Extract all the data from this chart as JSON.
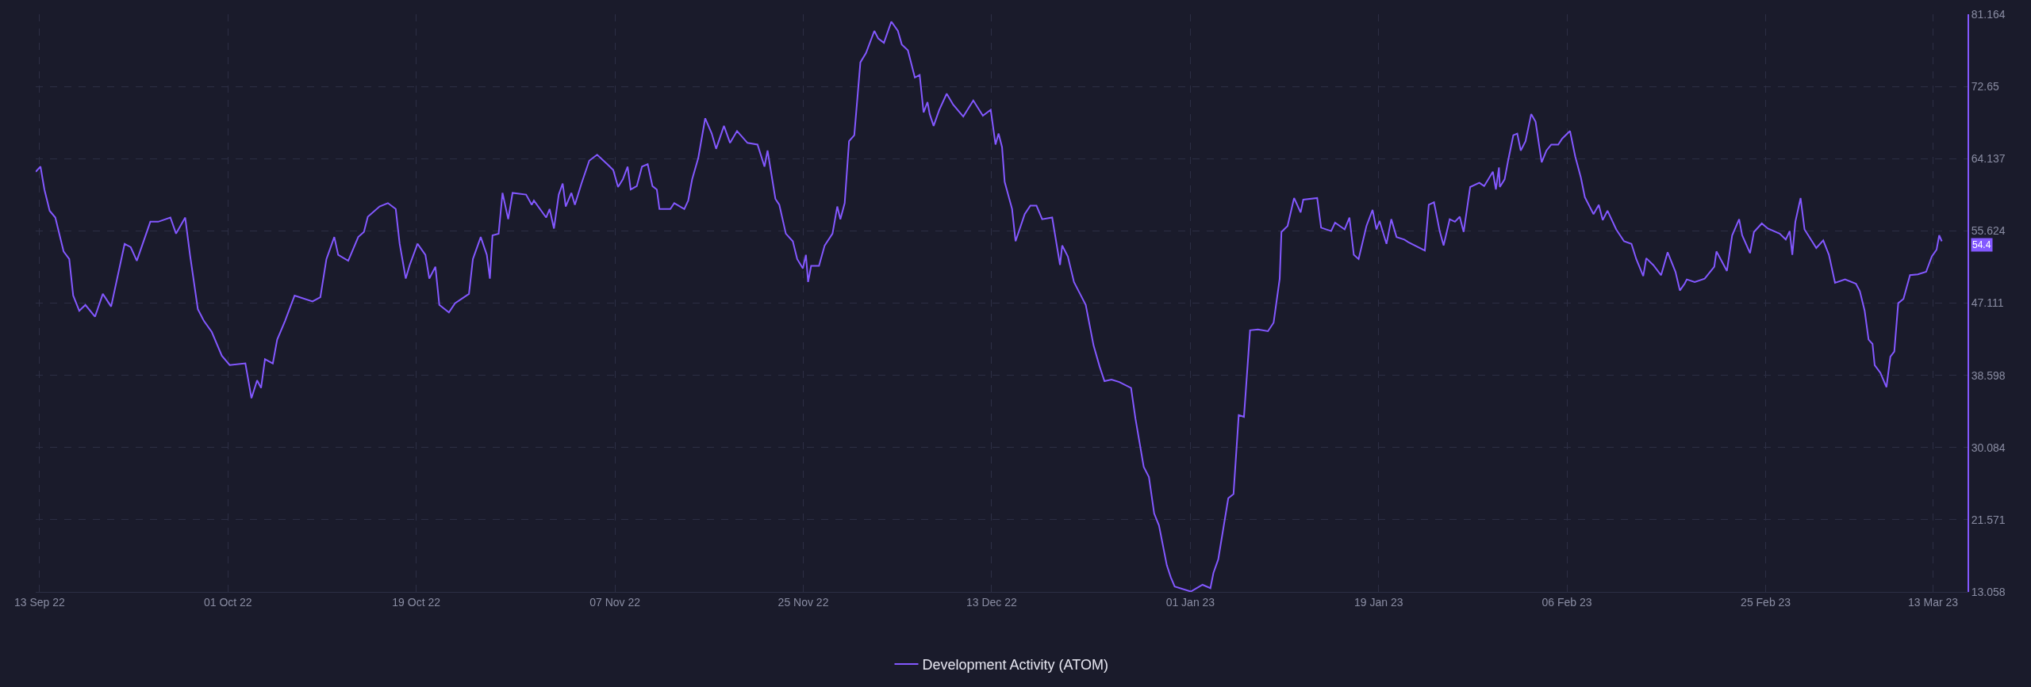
{
  "chart_data": {
    "type": "line",
    "x": [
      "2022-09-12T15:00",
      "2022-09-13T02:00",
      "2022-09-13T11:00",
      "2022-09-13T23:00",
      "2022-09-14T12:00",
      "2022-09-15T07:00",
      "2022-09-15T20:00",
      "2022-09-16T05:00",
      "2022-09-16T19:00",
      "2022-09-17T09:00",
      "2022-09-18T07:00",
      "2022-09-19T01:00",
      "2022-09-19T20:00",
      "2022-09-21T03:00",
      "2022-09-21T17:00",
      "2022-09-22T07:00",
      "2022-09-23T14:00",
      "2022-09-24T08:00",
      "2022-09-25T12:00",
      "2022-09-26T01:00",
      "2022-09-26T22:00",
      "2022-09-27T09:00",
      "2022-09-28T03:00",
      "2022-09-28T17:00",
      "2022-09-29T11:00",
      "2022-09-30T10:00",
      "2022-10-01T04:00",
      "2022-10-02T16:00",
      "2022-10-03T06:00",
      "2022-10-03T19:00",
      "2022-10-04T04:00",
      "2022-10-04T13:00",
      "2022-10-05T07:00",
      "2022-10-05T17:00",
      "2022-10-06T11:00",
      "2022-10-07T09:00",
      "2022-10-09T02:00",
      "2022-10-09T20:00",
      "2022-10-10T10:00",
      "2022-10-11T04:00",
      "2022-10-11T13:00",
      "2022-10-12T12:00",
      "2022-10-13T11:00",
      "2022-10-14T00:00",
      "2022-10-14T09:00",
      "2022-10-15T12:00",
      "2022-10-16T07:00",
      "2022-10-17T01:00",
      "2022-10-17T10:00",
      "2022-10-18T00:00",
      "2022-10-18T09:00",
      "2022-10-19T03:00",
      "2022-10-19T21:00",
      "2022-10-20T06:00",
      "2022-10-20T20:00",
      "2022-10-21T05:00",
      "2022-10-22T03:00",
      "2022-10-22T17:00",
      "2022-10-24T01:00",
      "2022-10-24T10:00",
      "2022-10-25T04:00",
      "2022-10-25T18:00",
      "2022-10-26T01:00",
      "2022-10-26T07:00",
      "2022-10-26T21:00",
      "2022-10-27T06:00",
      "2022-10-27T19:00",
      "2022-10-28T05:00",
      "2022-10-29T12:00",
      "2022-10-30T01:00",
      "2022-10-30T06:00",
      "2022-10-31T10:00",
      "2022-10-31T18:00",
      "2022-11-01T04:00",
      "2022-11-01T15:00",
      "2022-11-02T00:00",
      "2022-11-02T07:00",
      "2022-11-02T20:00",
      "2022-11-03T04:00",
      "2022-11-03T19:00",
      "2022-11-04T13:00",
      "2022-11-05T07:00",
      "2022-11-06T06:00",
      "2022-11-06T20:00",
      "2022-11-07T07:00",
      "2022-11-07T18:00",
      "2022-11-08T05:00",
      "2022-11-08T12:00",
      "2022-11-09T02:00",
      "2022-11-09T14:00",
      "2022-11-10T03:00",
      "2022-11-10T14:00",
      "2022-11-11T00:00",
      "2022-11-11T06:00",
      "2022-11-12T07:00",
      "2022-11-12T16:00",
      "2022-11-13T15:00",
      "2022-11-14T00:00",
      "2022-11-14T09:00",
      "2022-11-14T23:00",
      "2022-11-15T15:00",
      "2022-11-16T06:00",
      "2022-11-16T16:00",
      "2022-11-17T10:00",
      "2022-11-18T00:00",
      "2022-11-18T16:00",
      "2022-11-19T16:00",
      "2022-11-20T15:00",
      "2022-11-21T07:00",
      "2022-11-21T14:00",
      "2022-11-22T08:00",
      "2022-11-22T17:00",
      "2022-11-23T08:00",
      "2022-11-24T00:00",
      "2022-11-24T10:00",
      "2022-11-24T23:00",
      "2022-11-25T06:00",
      "2022-11-25T11:00",
      "2022-11-25T18:00",
      "2022-11-26T12:00",
      "2022-11-27T01:00",
      "2022-11-27T19:00",
      "2022-11-28T06:00",
      "2022-11-28T13:00",
      "2022-11-28T23:00",
      "2022-11-29T09:00",
      "2022-11-29T21:00",
      "2022-11-30T11:00",
      "2022-12-01T00:00",
      "2022-12-01T19:00",
      "2022-12-02T04:00",
      "2022-12-02T17:00",
      "2022-12-03T10:00",
      "2022-12-04T01:00",
      "2022-12-04T10:00",
      "2022-12-05T00:00",
      "2022-12-05T16:00",
      "2022-12-06T03:00",
      "2022-12-06T12:00",
      "2022-12-06T21:00",
      "2022-12-07T02:00",
      "2022-12-07T11:00",
      "2022-12-08T00:00",
      "2022-12-08T17:00",
      "2022-12-09T08:00",
      "2022-12-10T07:00",
      "2022-12-11T06:00",
      "2022-12-12T04:00",
      "2022-12-12T22:00",
      "2022-12-13T09:00",
      "2022-12-13T16:00",
      "2022-12-14T00:00",
      "2022-12-14T06:00",
      "2022-12-14T23:00",
      "2022-12-15T07:00",
      "2022-12-16T04:00",
      "2022-12-16T17:00",
      "2022-12-17T07:00",
      "2022-12-17T20:00",
      "2022-12-18T19:00",
      "2022-12-19T13:00",
      "2022-12-19T18:00",
      "2022-12-20T07:00",
      "2022-12-20T21:00",
      "2022-12-21T11:00",
      "2022-12-22T00:00",
      "2022-12-22T18:00",
      "2022-12-23T08:00",
      "2022-12-23T19:00",
      "2022-12-24T11:00",
      "2022-12-25T05:00",
      "2022-12-26T08:00",
      "2022-12-26T18:00",
      "2022-12-27T13:00",
      "2022-12-28T01:00",
      "2022-12-28T13:00",
      "2022-12-29T00:00",
      "2022-12-29T18:00",
      "2022-12-30T03:00",
      "2022-12-30T12:00",
      "2023-01-01T01:00",
      "2023-01-02T04:00",
      "2023-01-02T22:00",
      "2023-01-03T05:00",
      "2023-01-03T16:00",
      "2023-01-04T15:00",
      "2023-01-05T03:00",
      "2023-01-05T15:00",
      "2023-01-06T03:00",
      "2023-01-06T17:00",
      "2023-01-07T11:00",
      "2023-01-08T10:00",
      "2023-01-08T23:00",
      "2023-01-09T13:00",
      "2023-01-09T17:00",
      "2023-01-10T07:00",
      "2023-01-10T22:00",
      "2023-01-11T13:00",
      "2023-01-11T19:00",
      "2023-01-13T03:00",
      "2023-01-13T12:00",
      "2023-01-14T11:00",
      "2023-01-14T20:00",
      "2023-01-15T18:00",
      "2023-01-16T05:00",
      "2023-01-16T15:00",
      "2023-01-17T02:00",
      "2023-01-17T20:00",
      "2023-01-18T10:00",
      "2023-01-18T19:00",
      "2023-01-19T02:00",
      "2023-01-19T18:00",
      "2023-01-20T05:00",
      "2023-01-20T17:00",
      "2023-01-21T11:00",
      "2023-01-21T20:00",
      "2023-01-23T10:00",
      "2023-01-23T19:00",
      "2023-01-24T07:00",
      "2023-01-24T20:00",
      "2023-01-25T05:00",
      "2023-01-25T19:00",
      "2023-01-26T07:00",
      "2023-01-26T18:00",
      "2023-01-27T03:00",
      "2023-01-27T18:00",
      "2023-01-28T15:00",
      "2023-01-29T02:00",
      "2023-01-29T22:00",
      "2023-01-30T05:00",
      "2023-01-30T12:00",
      "2023-01-30T14:00",
      "2023-01-31T01:00",
      "2023-01-31T09:00",
      "2023-01-31T21:00",
      "2023-02-01T06:00",
      "2023-02-01T14:00",
      "2023-02-02T01:00",
      "2023-02-02T14:00",
      "2023-02-03T00:00",
      "2023-02-03T14:00",
      "2023-02-04T01:00",
      "2023-02-04T12:00",
      "2023-02-05T04:00",
      "2023-02-05T13:00",
      "2023-02-06T07:00",
      "2023-02-06T19:00",
      "2023-02-07T08:00",
      "2023-02-07T17:00",
      "2023-02-08T13:00",
      "2023-02-09T01:00",
      "2023-02-09T10:00",
      "2023-02-09T21:00",
      "2023-02-10T17:00",
      "2023-02-11T11:00",
      "2023-02-12T04:00",
      "2023-02-12T15:00",
      "2023-02-13T07:00",
      "2023-02-13T14:00",
      "2023-02-14T06:00",
      "2023-02-15T00:00",
      "2023-02-15T15:00",
      "2023-02-16T09:00",
      "2023-02-16T19:00",
      "2023-02-17T06:00",
      "2023-02-17T11:00",
      "2023-02-18T05:00",
      "2023-02-19T04:00",
      "2023-02-20T02:00",
      "2023-02-20T07:00",
      "2023-02-21T07:00",
      "2023-02-21T19:00",
      "2023-02-22T11:00",
      "2023-02-22T18:00",
      "2023-02-23T12:00",
      "2023-02-23T21:00",
      "2023-02-24T15:00",
      "2023-02-25T05:00",
      "2023-02-26T08:00",
      "2023-02-26T22:00",
      "2023-02-27T07:00",
      "2023-02-27T13:00",
      "2023-02-27T20:00",
      "2023-02-28T08:00",
      "2023-02-28T17:00",
      "2023-03-01T20:00",
      "2023-03-02T12:00",
      "2023-03-03T01:00",
      "2023-03-03T15:00",
      "2023-03-04T14:00",
      "2023-03-05T15:00",
      "2023-03-06T00:00",
      "2023-03-06T11:00",
      "2023-03-06T20:00",
      "2023-03-07T05:00",
      "2023-03-07T10:00",
      "2023-03-07T23:00",
      "2023-03-08T13:00",
      "2023-03-08T22:00",
      "2023-03-09T07:00",
      "2023-03-09T16:00",
      "2023-03-10T04:00",
      "2023-03-10T19:00",
      "2023-03-11T13:00",
      "2023-03-12T08:00",
      "2023-03-12T21:00",
      "2023-03-13T08:00",
      "2023-03-13T14:00",
      "2023-03-13T20:00"
    ],
    "series": [
      {
        "name": "Development Activity (ATOM)",
        "color": "#8358ff",
        "values": [
          62.6,
          63.2,
          60.5,
          58.0,
          57.2,
          53.2,
          52.3,
          48.0,
          46.2,
          46.9,
          45.5,
          48.2,
          46.7,
          54.1,
          53.7,
          52.1,
          56.7,
          56.7,
          57.2,
          55.3,
          57.2,
          52.8,
          46.4,
          45.0,
          43.7,
          40.9,
          39.8,
          40.0,
          35.9,
          38.0,
          37.1,
          40.5,
          40.0,
          42.8,
          45.0,
          48.0,
          47.3,
          47.8,
          52.3,
          54.9,
          52.8,
          52.1,
          54.9,
          55.5,
          57.3,
          58.5,
          58.9,
          58.2,
          54.1,
          50.0,
          51.6,
          54.1,
          52.8,
          50.0,
          51.4,
          46.9,
          46.0,
          47.1,
          48.2,
          52.3,
          54.9,
          52.8,
          50.0,
          55.1,
          55.3,
          60.1,
          57.0,
          60.1,
          59.9,
          58.7,
          59.2,
          57.2,
          58.2,
          55.9,
          59.9,
          61.2,
          58.5,
          60.1,
          58.7,
          61.2,
          63.9,
          64.6,
          63.5,
          62.8,
          60.8,
          61.7,
          63.2,
          60.5,
          60.9,
          63.2,
          63.5,
          60.9,
          60.5,
          58.2,
          58.2,
          58.9,
          58.2,
          59.2,
          61.7,
          64.2,
          68.9,
          67.1,
          65.3,
          68.0,
          66.0,
          67.4,
          66.0,
          65.8,
          63.2,
          65.1,
          59.4,
          58.7,
          55.3,
          54.4,
          52.3,
          51.2,
          52.8,
          49.6,
          51.5,
          51.5,
          53.9,
          55.3,
          58.5,
          57.0,
          58.9,
          66.2,
          66.9,
          75.5,
          76.6,
          79.2,
          78.3,
          77.8,
          80.3,
          79.2,
          77.6,
          76.9,
          73.7,
          74.0,
          69.6,
          70.8,
          69.4,
          68.0,
          69.9,
          71.8,
          70.5,
          69.1,
          71.0,
          69.2,
          69.9,
          65.8,
          67.1,
          65.5,
          61.4,
          58.2,
          54.4,
          57.6,
          58.6,
          58.6,
          57.0,
          57.2,
          51.6,
          53.9,
          52.6,
          49.6,
          48.2,
          46.9,
          42.1,
          39.6,
          37.9,
          38.1,
          37.8,
          37.1,
          33.5,
          27.8,
          26.6,
          22.3,
          20.9,
          16.2,
          14.8,
          13.7,
          13.1,
          13.9,
          13.5,
          15.3,
          16.9,
          24.1,
          24.6,
          33.9,
          33.7,
          43.9,
          44.0,
          43.8,
          44.8,
          50.0,
          55.5,
          56.2,
          59.5,
          57.8,
          59.3,
          59.5,
          56.0,
          55.6,
          56.6,
          55.8,
          57.2,
          52.8,
          52.3,
          56.2,
          58.1,
          55.8,
          56.8,
          54.1,
          57.0,
          54.9,
          54.6,
          54.3,
          53.3,
          58.7,
          59.0,
          55.6,
          53.9,
          57.0,
          56.7,
          57.3,
          55.5,
          60.8,
          61.3,
          60.9,
          62.6,
          60.5,
          63.1,
          60.8,
          61.7,
          63.9,
          66.9,
          67.1,
          65.1,
          66.2,
          69.4,
          68.5,
          63.7,
          65.1,
          65.8,
          65.8,
          66.5,
          67.4,
          64.4,
          61.9,
          59.6,
          57.6,
          58.7,
          56.9,
          58.0,
          55.8,
          54.4,
          54.1,
          52.3,
          50.3,
          52.4,
          51.6,
          50.4,
          53.1,
          50.8,
          48.6,
          49.4,
          49.9,
          49.6,
          50.0,
          51.4,
          53.2,
          50.9,
          55.1,
          57.0,
          55.1,
          53.0,
          55.5,
          56.5,
          55.9,
          55.3,
          54.6,
          55.6,
          52.8,
          56.7,
          59.5,
          55.8,
          53.6,
          54.5,
          52.8,
          49.5,
          49.9,
          49.4,
          48.5,
          46.2,
          42.8,
          42.3,
          39.8,
          38.9,
          37.2,
          40.8,
          41.4,
          47.1,
          47.6,
          50.4,
          50.5,
          50.8,
          52.6,
          53.4,
          55.1,
          54.4
        ]
      }
    ],
    "xlim": [
      "2022-09-12T15:00",
      "2023-03-16T07:00"
    ],
    "xticks": [
      {
        "value": "2022-09-13",
        "label": "13 Sep 22"
      },
      {
        "value": "2022-10-01",
        "label": "01 Oct 22"
      },
      {
        "value": "2022-10-19",
        "label": "19 Oct 22"
      },
      {
        "value": "2022-11-07",
        "label": "07 Nov 22"
      },
      {
        "value": "2022-11-25",
        "label": "25 Nov 22"
      },
      {
        "value": "2022-12-13",
        "label": "13 Dec 22"
      },
      {
        "value": "2023-01-01",
        "label": "01 Jan 23"
      },
      {
        "value": "2023-01-19",
        "label": "19 Jan 23"
      },
      {
        "value": "2023-02-06",
        "label": "06 Feb 23"
      },
      {
        "value": "2023-02-25",
        "label": "25 Feb 23"
      },
      {
        "value": "2023-03-13",
        "label": "13 Mar 23"
      }
    ],
    "ylim": [
      13.058,
      81.164
    ],
    "yticks": [
      13.058,
      21.571,
      30.084,
      38.598,
      47.111,
      55.624,
      64.137,
      72.65,
      81.164
    ],
    "annotations": [
      "54.4"
    ],
    "grid": true,
    "legend": "bottom",
    "marker": "none",
    "line_style": "solid"
  }
}
